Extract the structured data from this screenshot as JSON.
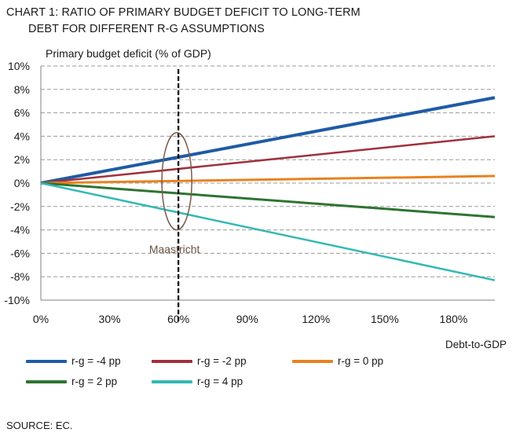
{
  "title_line1": "CHART 1:  RATIO OF PRIMARY BUDGET DEFICIT TO LONG-TERM",
  "title_line2": "DEBT FOR DIFFERENT R-G ASSUMPTIONS",
  "source": "SOURCE: EC.",
  "chart_data": {
    "type": "line",
    "title": "RATIO OF PRIMARY BUDGET DEFICIT TO LONG-TERM DEBT FOR DIFFERENT R-G ASSUMPTIONS",
    "ylabel": "Primary budget deficit (% of GDP)",
    "xlabel": "Debt-to-GDP",
    "xlim": [
      0,
      198
    ],
    "ylim": [
      -10,
      10
    ],
    "x_ticks": [
      0,
      30,
      60,
      90,
      120,
      150,
      180
    ],
    "x_tick_labels": [
      "0%",
      "30%",
      "60%",
      "90%",
      "120%",
      "150%",
      "180%"
    ],
    "y_ticks": [
      -10,
      -8,
      -6,
      -4,
      -2,
      0,
      2,
      4,
      6,
      8,
      10
    ],
    "y_tick_labels": [
      "-10%",
      "-8%",
      "-6%",
      "-4%",
      "-2%",
      "0%",
      "2%",
      "4%",
      "6%",
      "8%",
      "10%"
    ],
    "grid": "horizontal dashed",
    "legend_position": "bottom",
    "series": [
      {
        "name": "r-g = -4 pp",
        "color": "#1f5ba6",
        "x": [
          0,
          198
        ],
        "y": [
          0,
          7.3
        ]
      },
      {
        "name": "r-g = -2 pp",
        "color": "#a0303c",
        "x": [
          0,
          198
        ],
        "y": [
          0,
          4.0
        ]
      },
      {
        "name": "r-g = 0 pp",
        "color": "#e8821e",
        "x": [
          0,
          198
        ],
        "y": [
          0,
          0.6
        ]
      },
      {
        "name": "r-g = 2 pp",
        "color": "#2e7431",
        "x": [
          0,
          198
        ],
        "y": [
          0,
          -2.9
        ]
      },
      {
        "name": "r-g = 4 pp",
        "color": "#33b8b4",
        "x": [
          0,
          198
        ],
        "y": [
          0,
          -8.3
        ]
      }
    ],
    "annotations": [
      {
        "text": "Maastricht",
        "x": 60,
        "type": "vertical dashed line with ellipse",
        "ellipse_y_range": [
          -4,
          4.3
        ]
      }
    ]
  }
}
